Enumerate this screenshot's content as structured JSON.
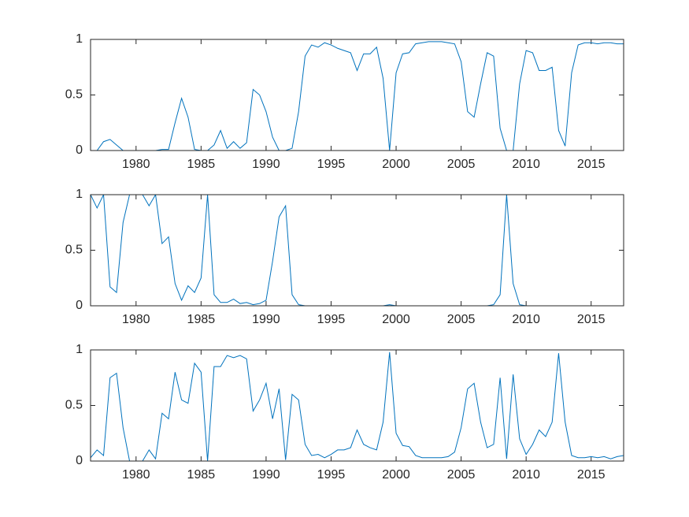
{
  "chart_data": [
    {
      "type": "line",
      "x": [
        1976.5,
        1977,
        1977.5,
        1978,
        1978.5,
        1979,
        1979.5,
        1980,
        1980.5,
        1981,
        1981.5,
        1982,
        1982.5,
        1983,
        1983.5,
        1984,
        1984.5,
        1985,
        1985.5,
        1986,
        1986.5,
        1987,
        1987.5,
        1988,
        1988.5,
        1989,
        1989.5,
        1990,
        1990.5,
        1991,
        1991.5,
        1992,
        1992.5,
        1993,
        1993.5,
        1994,
        1994.5,
        1995,
        1995.5,
        1996,
        1996.5,
        1997,
        1997.5,
        1998,
        1998.5,
        1999,
        1999.5,
        2000,
        2000.5,
        2001,
        2001.5,
        2002,
        2002.5,
        2003,
        2003.5,
        2004,
        2004.5,
        2005,
        2005.5,
        2006,
        2006.5,
        2007,
        2007.5,
        2008,
        2008.5,
        2009,
        2009.5,
        2010,
        2010.5,
        2011,
        2011.5,
        2012,
        2012.5,
        2013,
        2013.5,
        2014,
        2014.5,
        2015,
        2015.5,
        2016,
        2016.5,
        2017,
        2017.5
      ],
      "series": [
        {
          "color": "#0072bd",
          "values": [
            0,
            0,
            0.08,
            0.1,
            0.05,
            0,
            0,
            0,
            0,
            0,
            0,
            0.01,
            0.01,
            0.25,
            0.47,
            0.3,
            0.01,
            0,
            0,
            0.05,
            0.18,
            0.02,
            0.08,
            0.02,
            0.07,
            0.55,
            0.5,
            0.35,
            0.12,
            0,
            0,
            0.02,
            0.35,
            0.85,
            0.95,
            0.93,
            0.97,
            0.95,
            0.92,
            0.9,
            0.88,
            0.72,
            0.87,
            0.87,
            0.93,
            0.65,
            0,
            0.7,
            0.87,
            0.88,
            0.96,
            0.97,
            0.98,
            0.98,
            0.98,
            0.97,
            0.96,
            0.8,
            0.35,
            0.3,
            0.6,
            0.88,
            0.85,
            0.2,
            0,
            0,
            0.6,
            0.9,
            0.88,
            0.72,
            0.72,
            0.75,
            0.18,
            0.04,
            0.7,
            0.95,
            0.97,
            0.97,
            0.96,
            0.97,
            0.97,
            0.96,
            0.96
          ]
        }
      ],
      "xlim": [
        1976.5,
        2017.5
      ],
      "xticks": [
        1980,
        1985,
        1990,
        1995,
        2000,
        2005,
        2010,
        2015
      ],
      "ylim": [
        0,
        1
      ],
      "yticks": [
        0,
        0.5,
        1
      ],
      "grid": false
    },
    {
      "type": "line",
      "x": [
        1976.5,
        1977,
        1977.5,
        1978,
        1978.5,
        1979,
        1979.5,
        1980,
        1980.5,
        1981,
        1981.5,
        1982,
        1982.5,
        1983,
        1983.5,
        1984,
        1984.5,
        1985,
        1985.5,
        1986,
        1986.5,
        1987,
        1987.5,
        1988,
        1988.5,
        1989,
        1989.5,
        1990,
        1990.5,
        1991,
        1991.5,
        1992,
        1992.5,
        1993,
        1993.5,
        1994,
        1994.5,
        1995,
        1995.5,
        1996,
        1996.5,
        1997,
        1997.5,
        1998,
        1998.5,
        1999,
        1999.5,
        2000,
        2000.5,
        2001,
        2001.5,
        2002,
        2002.5,
        2003,
        2003.5,
        2004,
        2004.5,
        2005,
        2005.5,
        2006,
        2006.5,
        2007,
        2007.5,
        2008,
        2008.5,
        2009,
        2009.5,
        2010,
        2010.5,
        2011,
        2011.5,
        2012,
        2012.5,
        2013,
        2013.5,
        2014,
        2014.5,
        2015,
        2015.5,
        2016,
        2016.5,
        2017,
        2017.5
      ],
      "series": [
        {
          "color": "#0072bd",
          "values": [
            1,
            0.88,
            1,
            0.17,
            0.12,
            0.75,
            1,
            1,
            1,
            0.9,
            1,
            0.56,
            0.62,
            0.2,
            0.05,
            0.18,
            0.12,
            0.25,
            1,
            0.1,
            0.03,
            0.03,
            0.06,
            0.02,
            0.03,
            0.01,
            0.02,
            0.05,
            0.4,
            0.8,
            0.9,
            0.1,
            0.01,
            0,
            0,
            0,
            0,
            0,
            0,
            0,
            0,
            0,
            0,
            0,
            0,
            0,
            0.01,
            0,
            0,
            0,
            0,
            0,
            0,
            0,
            0,
            0,
            0,
            0,
            0,
            0,
            0,
            0,
            0.01,
            0.1,
            1,
            0.2,
            0.01,
            0,
            0,
            0,
            0,
            0,
            0,
            0,
            0,
            0,
            0,
            0,
            0,
            0,
            0,
            0,
            0
          ]
        }
      ],
      "xlim": [
        1976.5,
        2017.5
      ],
      "xticks": [
        1980,
        1985,
        1990,
        1995,
        2000,
        2005,
        2010,
        2015
      ],
      "ylim": [
        0,
        1
      ],
      "yticks": [
        0,
        0.5,
        1
      ],
      "grid": false
    },
    {
      "type": "line",
      "x": [
        1976.5,
        1977,
        1977.5,
        1978,
        1978.5,
        1979,
        1979.5,
        1980,
        1980.5,
        1981,
        1981.5,
        1982,
        1982.5,
        1983,
        1983.5,
        1984,
        1984.5,
        1985,
        1985.5,
        1986,
        1986.5,
        1987,
        1987.5,
        1988,
        1988.5,
        1989,
        1989.5,
        1990,
        1990.5,
        1991,
        1991.5,
        1992,
        1992.5,
        1993,
        1993.5,
        1994,
        1994.5,
        1995,
        1995.5,
        1996,
        1996.5,
        1997,
        1997.5,
        1998,
        1998.5,
        1999,
        1999.5,
        2000,
        2000.5,
        2001,
        2001.5,
        2002,
        2002.5,
        2003,
        2003.5,
        2004,
        2004.5,
        2005,
        2005.5,
        2006,
        2006.5,
        2007,
        2007.5,
        2008,
        2008.5,
        2009,
        2009.5,
        2010,
        2010.5,
        2011,
        2011.5,
        2012,
        2012.5,
        2013,
        2013.5,
        2014,
        2014.5,
        2015,
        2015.5,
        2016,
        2016.5,
        2017,
        2017.5
      ],
      "series": [
        {
          "color": "#0072bd",
          "values": [
            0.03,
            0.1,
            0.05,
            0.75,
            0.79,
            0.3,
            0,
            0,
            0,
            0.1,
            0.02,
            0.43,
            0.38,
            0.8,
            0.55,
            0.52,
            0.88,
            0.8,
            0,
            0.85,
            0.85,
            0.95,
            0.93,
            0.95,
            0.92,
            0.45,
            0.55,
            0.7,
            0.38,
            0.65,
            0.01,
            0.6,
            0.55,
            0.15,
            0.05,
            0.06,
            0.03,
            0.06,
            0.1,
            0.1,
            0.12,
            0.28,
            0.15,
            0.12,
            0.1,
            0.35,
            0.98,
            0.25,
            0.14,
            0.13,
            0.05,
            0.03,
            0.03,
            0.03,
            0.03,
            0.04,
            0.08,
            0.3,
            0.65,
            0.7,
            0.35,
            0.12,
            0.15,
            0.75,
            0.02,
            0.78,
            0.2,
            0.06,
            0.15,
            0.28,
            0.22,
            0.35,
            0.97,
            0.35,
            0.05,
            0.03,
            0.03,
            0.04,
            0.03,
            0.04,
            0.02,
            0.04,
            0.05
          ]
        }
      ],
      "xlim": [
        1976.5,
        2017.5
      ],
      "xticks": [
        1980,
        1985,
        1990,
        1995,
        2000,
        2005,
        2010,
        2015
      ],
      "ylim": [
        0,
        1
      ],
      "yticks": [
        0,
        0.5,
        1
      ],
      "grid": false
    }
  ]
}
